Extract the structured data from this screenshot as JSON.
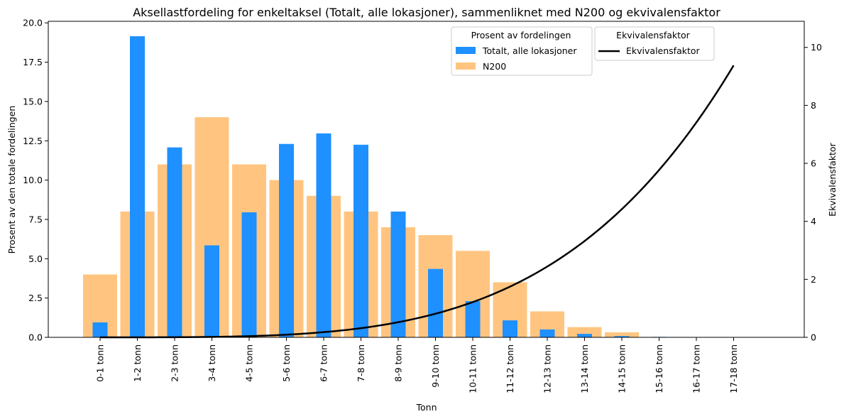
{
  "chart_data": {
    "type": "bar",
    "title": "Aksellastfordeling for enkeltaksel (Totalt, alle lokasjoner), sammenliknet med N200 og ekvivalensfaktor",
    "xlabel": "Tonn",
    "ylabel": "Prosent av den totale fordelingen",
    "y2label": "Ekvivalensfaktor",
    "categories": [
      "0-1 tonn",
      "1-2 tonn",
      "2-3 tonn",
      "3-4 tonn",
      "4-5 tonn",
      "5-6 tonn",
      "6-7 tonn",
      "7-8 tonn",
      "8-9 tonn",
      "9-10 tonn",
      "10-11 tonn",
      "11-12 tonn",
      "12-13 tonn",
      "13-14 tonn",
      "14-15 tonn",
      "15-16 tonn",
      "16-17 tonn",
      "17-18 tonn"
    ],
    "ylim": [
      0,
      20.1
    ],
    "y2lim": [
      0,
      10.9
    ],
    "yticks": [
      "0.0",
      "2.5",
      "5.0",
      "7.5",
      "10.0",
      "12.5",
      "15.0",
      "17.5",
      "20.0"
    ],
    "y2ticks": [
      "0",
      "2",
      "4",
      "6",
      "8",
      "10"
    ],
    "series": [
      {
        "name": "Totalt, alle lokasjoner",
        "axis": "left",
        "color": "#1e90ff",
        "values": [
          0.95,
          19.15,
          12.08,
          5.85,
          7.95,
          12.3,
          12.97,
          12.25,
          8.0,
          4.35,
          2.3,
          1.08,
          0.5,
          0.22,
          0.08,
          0.03,
          0.02,
          0.02
        ]
      },
      {
        "name": "N200",
        "axis": "left",
        "color": "#ffc580",
        "values": [
          4.0,
          8.0,
          11.0,
          14.0,
          11.0,
          10.0,
          9.0,
          8.0,
          7.0,
          6.5,
          5.5,
          3.5,
          1.65,
          0.65,
          0.32,
          0,
          0,
          0
        ]
      }
    ],
    "line": {
      "name": "Ekvivalensfaktor",
      "axis": "right",
      "color": "#000000",
      "x_range": [
        0.5,
        17.5
      ],
      "formula": "(x/10)^4"
    },
    "legend": {
      "primary_title": "Prosent av fordelingen",
      "secondary_title": "Ekvivalensfaktor",
      "placement": "top-right"
    },
    "grid": false
  }
}
